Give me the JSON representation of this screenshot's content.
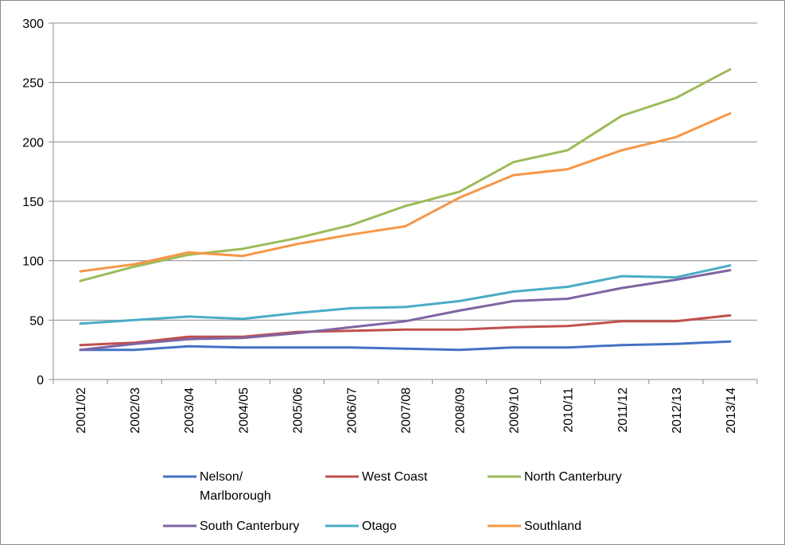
{
  "chart_data": {
    "type": "line",
    "title": "",
    "xlabel": "",
    "ylabel": "",
    "ylim": [
      0,
      300
    ],
    "yticks": [
      0,
      50,
      100,
      150,
      200,
      250,
      300
    ],
    "grid": "horizontal",
    "legend_position": "bottom",
    "categories": [
      "2001/02",
      "2002/03",
      "2003/04",
      "2004/05",
      "2005/06",
      "2006/07",
      "2007/08",
      "2008/09",
      "2009/10",
      "2010/11",
      "2011/12",
      "2012/13",
      "2013/14"
    ],
    "series": [
      {
        "name": "Nelson/ Marlborough",
        "legend_lines": [
          "Nelson/",
          "Marlborough"
        ],
        "color": "#4472c4",
        "values": [
          25,
          25,
          28,
          27,
          27,
          27,
          26,
          25,
          27,
          27,
          29,
          30,
          32
        ]
      },
      {
        "name": "West Coast",
        "legend_lines": [
          "West Coast"
        ],
        "color": "#c0504d",
        "values": [
          29,
          31,
          36,
          36,
          40,
          41,
          42,
          42,
          44,
          45,
          49,
          49,
          54
        ]
      },
      {
        "name": "North Canterbury",
        "legend_lines": [
          "North Canterbury"
        ],
        "color": "#9bbb59",
        "values": [
          83,
          95,
          105,
          110,
          119,
          130,
          146,
          158,
          183,
          193,
          222,
          237,
          261
        ]
      },
      {
        "name": "South Canterbury",
        "legend_lines": [
          "South Canterbury"
        ],
        "color": "#8064a2",
        "values": [
          25,
          30,
          34,
          35,
          39,
          44,
          49,
          58,
          66,
          68,
          77,
          84,
          92
        ]
      },
      {
        "name": "Otago",
        "legend_lines": [
          "Otago"
        ],
        "color": "#4bacc6",
        "values": [
          47,
          50,
          53,
          51,
          56,
          60,
          61,
          66,
          74,
          78,
          87,
          86,
          96
        ]
      },
      {
        "name": "Southland",
        "legend_lines": [
          "Southland"
        ],
        "color": "#f79646",
        "values": [
          91,
          97,
          107,
          104,
          114,
          122,
          129,
          153,
          172,
          177,
          193,
          204,
          224
        ]
      }
    ]
  }
}
